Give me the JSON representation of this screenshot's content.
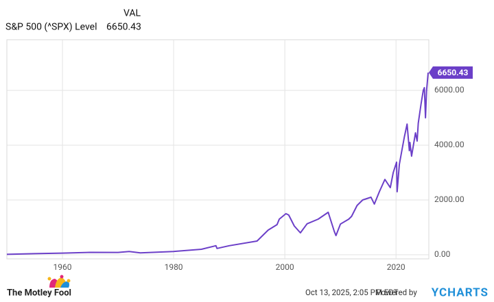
{
  "chart_data": {
    "type": "line",
    "legend_header": "VAL",
    "x": [
      1950,
      1955,
      1960,
      1965,
      1970,
      1972,
      1974,
      1980,
      1985,
      1987.6,
      1987.8,
      1990,
      1995,
      1997,
      1998.6,
      1999,
      2000.2,
      2000.7,
      2001.7,
      2002.8,
      2004,
      2006,
      2007.8,
      2008.9,
      2009.2,
      2010,
      2011.5,
      2012,
      2013,
      2014,
      2015.5,
      2016.1,
      2017,
      2018,
      2018.97,
      2019.5,
      2020.1,
      2020.2,
      2020.6,
      2021,
      2021.5,
      2021.99,
      2022.4,
      2022.5,
      2022.8,
      2023.5,
      2023.8,
      2024,
      2024.5,
      2024.9,
      2025.1,
      2025.3,
      2025.5,
      2025.78
    ],
    "series": [
      {
        "name": "S&P 500 (^SPX) Level",
        "color": "#6b3fc8",
        "values": [
          17,
          40,
          58,
          88,
          85,
          118,
          68,
          120,
          200,
          330,
          230,
          330,
          500,
          900,
          1100,
          1300,
          1500,
          1450,
          1050,
          800,
          1130,
          1300,
          1550,
          850,
          700,
          1120,
          1300,
          1400,
          1800,
          2000,
          2100,
          1850,
          2300,
          2750,
          2450,
          3000,
          3380,
          2300,
          3300,
          3750,
          4300,
          4770,
          3800,
          4100,
          3600,
          4450,
          4150,
          4800,
          5500,
          6000,
          6100,
          5000,
          6000,
          6650.43
        ]
      }
    ],
    "xlim": [
      1950,
      2025.9
    ],
    "xticks": [
      1960,
      1980,
      2000,
      2020
    ],
    "ylim": [
      -150,
      7850
    ],
    "yticks": [
      {
        "value": 0,
        "label": "0.00"
      },
      {
        "value": 2000,
        "label": "2000.00"
      },
      {
        "value": 4000,
        "label": "4000.00"
      },
      {
        "value": 6000,
        "label": "6000.00"
      }
    ],
    "grid": true
  },
  "footer": {
    "timestamp": "Oct 13, 2025, 2:05 PM EDT",
    "powered_by": "Powered by",
    "brand": "YCHARTS",
    "source_logo": "The Motley Fool"
  }
}
